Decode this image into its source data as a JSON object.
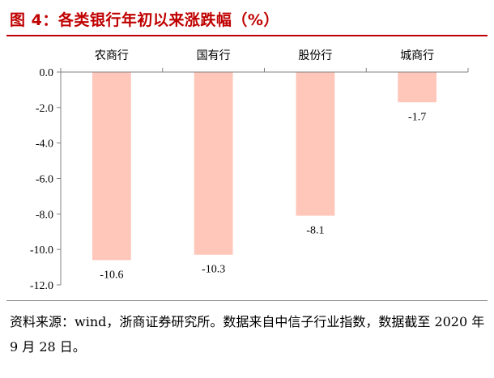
{
  "figure": {
    "title": "图 4：各类银行年初以来涨跌幅（%）",
    "title_color": "#C00000",
    "source_note": "资料来源：wind，浙商证券研究所。数据来自中信子行业指数，数据截至 2020 年 9 月 28 日。"
  },
  "chart_data": {
    "type": "bar",
    "categories": [
      "农商行",
      "国有行",
      "股份行",
      "城商行"
    ],
    "values": [
      -10.6,
      -10.3,
      -8.1,
      -1.7
    ],
    "value_labels": [
      "-10.6",
      "-10.3",
      "-8.1",
      "-1.7"
    ],
    "title": "",
    "xlabel": "",
    "ylabel": "",
    "ylim": [
      -12,
      0
    ],
    "yticks": [
      0,
      -2,
      -4,
      -6,
      -8,
      -10,
      -12
    ],
    "ytick_labels": [
      "0.0",
      "-2.0",
      "-4.0",
      "-6.0",
      "-8.0",
      "-10.0",
      "-12.0"
    ],
    "x_axis_position": "top",
    "grid": false,
    "legend": "none",
    "bar_color": "#FFC7BA",
    "axis_color": "#808080"
  }
}
